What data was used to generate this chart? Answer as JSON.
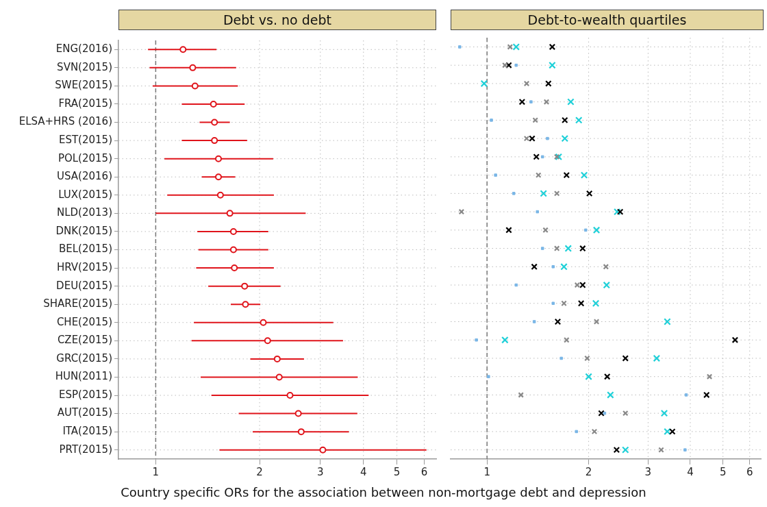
{
  "chart_data": [
    {
      "type": "scatter",
      "title": "Debt vs. no debt",
      "orientation": "horizontal",
      "categories": [
        "ENG(2016)",
        "SVN(2015)",
        "SWE(2015)",
        "FRA(2015)",
        "ELSA+HRS (2016)",
        "EST(2015)",
        "POL(2015)",
        "USA(2016)",
        "LUX(2015)",
        "NLD(2013)",
        "DNK(2015)",
        "BEL(2015)",
        "HRV(2015)",
        "DEU(2015)",
        "SHARE(2015)",
        "CHE(2015)",
        "CZE(2015)",
        "GRC(2015)",
        "HUN(2011)",
        "ESP(2015)",
        "AUT(2015)",
        "ITA(2015)",
        "PRT(2015)"
      ],
      "values": [
        1.2,
        1.28,
        1.3,
        1.47,
        1.48,
        1.48,
        1.52,
        1.52,
        1.54,
        1.64,
        1.68,
        1.68,
        1.69,
        1.81,
        1.82,
        2.05,
        2.11,
        2.25,
        2.28,
        2.45,
        2.59,
        2.64,
        3.05
      ],
      "errors": [
        [
          0.95,
          1.5
        ],
        [
          0.96,
          1.71
        ],
        [
          0.98,
          1.73
        ],
        [
          1.19,
          1.81
        ],
        [
          1.34,
          1.64
        ],
        [
          1.19,
          1.84
        ],
        [
          1.06,
          2.19
        ],
        [
          1.36,
          1.7
        ],
        [
          1.08,
          2.2
        ],
        [
          1.0,
          2.72
        ],
        [
          1.32,
          2.12
        ],
        [
          1.33,
          2.12
        ],
        [
          1.31,
          2.2
        ],
        [
          1.42,
          2.3
        ],
        [
          1.65,
          2.01
        ],
        [
          1.29,
          3.27
        ],
        [
          1.27,
          3.49
        ],
        [
          1.88,
          2.69
        ],
        [
          1.35,
          3.85
        ],
        [
          1.45,
          4.14
        ],
        [
          1.74,
          3.84
        ],
        [
          1.91,
          3.63
        ],
        [
          1.53,
          6.09
        ]
      ],
      "color": "#e0141b",
      "marker": "circle",
      "xlim": [
        0.78,
        6.5
      ],
      "xticks": [
        1,
        2,
        3,
        4,
        5,
        6
      ],
      "log": "x",
      "grid": true,
      "ref_lines": [
        {
          "axis": "x",
          "value": 1,
          "color": "#777777",
          "line_style": "dashed"
        }
      ],
      "annotations": [
        "Country specific ORs for the association between non-mortgage debt and depression"
      ]
    },
    {
      "type": "scatter",
      "title": "Debt-to-wealth quartiles",
      "orientation": "horizontal",
      "tick_labels": "x",
      "categories": [
        null,
        null,
        null,
        null,
        null,
        null,
        null,
        null,
        null,
        null,
        null,
        null,
        null,
        null,
        null,
        null,
        null,
        null,
        null,
        null,
        null,
        null,
        null
      ],
      "series": [
        {
          "color": "#7ab6e6",
          "marker": "square",
          "values": [
            0.83,
            1.22,
            null,
            1.35,
            1.03,
            1.51,
            1.46,
            1.06,
            1.2,
            1.41,
            1.96,
            1.46,
            1.57,
            1.22,
            1.57,
            1.38,
            0.93,
            1.66,
            1.01,
            3.89,
            2.23,
            1.84,
            3.86
          ]
        },
        {
          "color": "#888888",
          "marker": "cross",
          "values": [
            1.17,
            1.13,
            1.31,
            1.5,
            1.39,
            1.31,
            1.61,
            1.42,
            1.61,
            0.84,
            1.49,
            1.61,
            2.25,
            1.85,
            1.69,
            2.11,
            1.72,
            1.98,
            4.56,
            1.26,
            2.57,
            2.08,
            3.28
          ]
        },
        {
          "color": "#000000",
          "marker": "cross",
          "values": [
            1.56,
            1.16,
            1.52,
            1.27,
            1.7,
            1.36,
            1.4,
            1.72,
            2.01,
            2.48,
            1.16,
            1.92,
            1.38,
            1.92,
            1.9,
            1.62,
            5.43,
            2.57,
            2.27,
            4.47,
            2.18,
            3.54,
            2.42
          ]
        },
        {
          "color": "#1fd0d8",
          "marker": "cross",
          "values": [
            1.22,
            1.56,
            0.98,
            1.77,
            1.87,
            1.7,
            1.63,
            1.94,
            1.47,
            2.43,
            2.11,
            1.74,
            1.69,
            2.26,
            2.1,
            3.42,
            1.13,
            3.18,
            2.0,
            2.32,
            3.35,
            3.42,
            2.57
          ]
        }
      ],
      "xlim": [
        0.78,
        6.5
      ],
      "xticks": [
        1,
        2,
        3,
        4,
        5,
        6
      ],
      "log": "x",
      "grid": true,
      "ref_lines": [
        {
          "axis": "x",
          "value": 1,
          "color": "#777777",
          "line_style": "dashed"
        }
      ]
    }
  ]
}
